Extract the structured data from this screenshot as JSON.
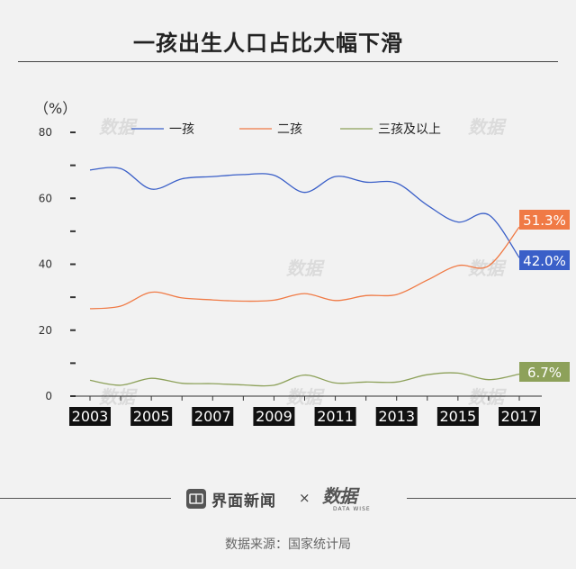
{
  "header": {
    "title": "一孩出生人口占比大幅下滑"
  },
  "chart_data": {
    "type": "line",
    "title": "一孩出生人口占比大幅下滑",
    "ylabel": "（%）",
    "xlabel": "",
    "ylim": [
      0,
      80
    ],
    "xlim": [
      2003,
      2017
    ],
    "y_ticks": [
      0,
      20,
      40,
      60,
      80
    ],
    "y_minor_ticks": [
      10,
      30,
      50,
      70
    ],
    "x_ticks": [
      "2003",
      "2005",
      "2007",
      "2009",
      "2011",
      "2013",
      "2015",
      "2017"
    ],
    "x": [
      2003,
      2004,
      2005,
      2006,
      2007,
      2008,
      2009,
      2010,
      2011,
      2012,
      2013,
      2014,
      2015,
      2016,
      2017
    ],
    "legend_position": "top",
    "grid": false,
    "series": [
      {
        "name": "一孩",
        "color": "#3a5fc8",
        "values": [
          68.6,
          69.0,
          62.8,
          65.9,
          66.6,
          67.2,
          67.0,
          61.8,
          66.6,
          64.9,
          64.6,
          57.9,
          52.8,
          55.0,
          42.0
        ],
        "end_label": "42.0%"
      },
      {
        "name": "二孩",
        "color": "#f07a45",
        "values": [
          26.5,
          27.3,
          31.5,
          29.8,
          29.2,
          28.8,
          29.1,
          31.1,
          29.0,
          30.5,
          30.8,
          35.2,
          39.6,
          39.5,
          51.3
        ],
        "end_label": "51.3%"
      },
      {
        "name": "三孩及以上",
        "color": "#8da15a",
        "values": [
          4.8,
          3.3,
          5.4,
          3.9,
          3.8,
          3.4,
          3.3,
          6.4,
          4.0,
          4.3,
          4.3,
          6.5,
          7.0,
          5.0,
          6.7
        ],
        "end_label": "6.7%"
      }
    ]
  },
  "footer": {
    "brand_name": "界面新闻",
    "times_symbol": "×",
    "logo_text": "数据",
    "logo_sub": "DATA WISE",
    "source": "数据来源：国家统计局"
  }
}
